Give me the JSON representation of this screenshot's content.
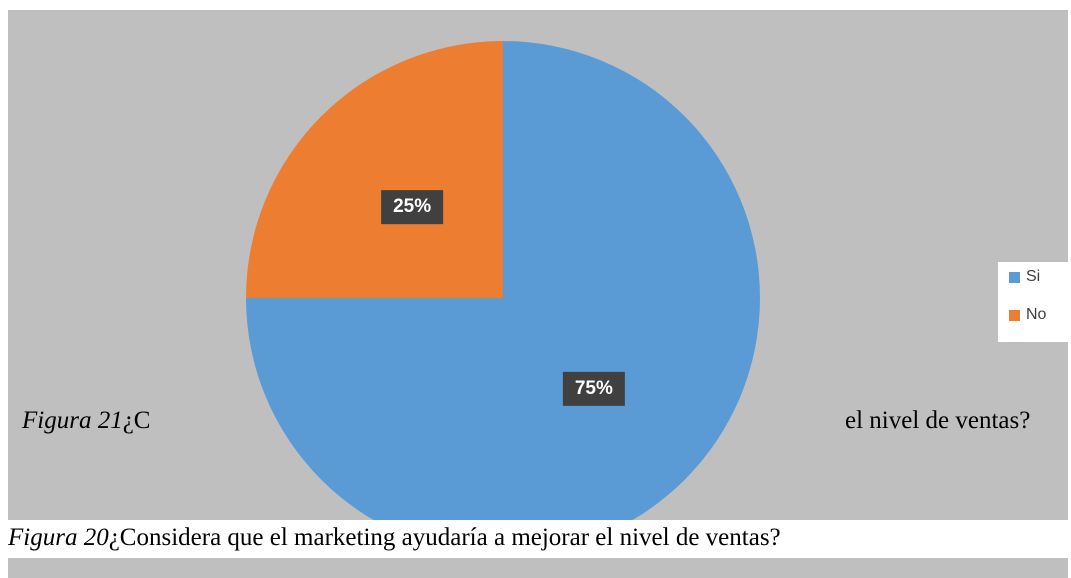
{
  "chart_data": {
    "type": "pie",
    "categories": [
      "Si",
      "No"
    ],
    "values": [
      75,
      25
    ],
    "value_labels": [
      "75%",
      "25%"
    ],
    "colors": [
      "#5b9bd5",
      "#ed7d31"
    ],
    "legend": "right"
  },
  "captions": {
    "figure_21": {
      "label": "Figura 21",
      "text_start": "¿C",
      "text_end": "el nivel de ventas?"
    },
    "figure_20": {
      "label": "Figura 20",
      "text": "¿Considera que el marketing ayudaría a mejorar el nivel de ventas?"
    }
  }
}
